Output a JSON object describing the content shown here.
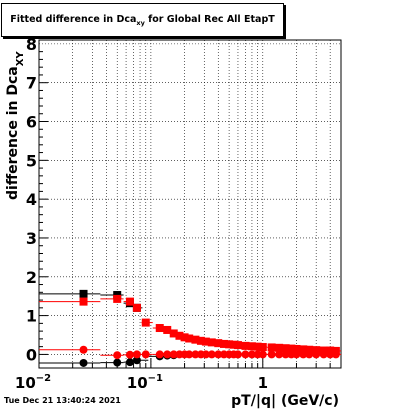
{
  "title": {
    "main": "Fitted difference in Dca",
    "sub": "xy",
    "suffix": " for Global Rec All EtapT"
  },
  "timestamp": "Tue Dec 21 13:40:24 2021",
  "chart_data": {
    "type": "scatter",
    "x_scale": "log",
    "xlim": [
      0.01,
      5
    ],
    "ylim": [
      -0.35,
      8.1
    ],
    "grid": true,
    "xlabel": "pT/|q| (GeV/c)",
    "ylabel": {
      "main": "difference in Dca",
      "sub": "XY"
    },
    "x_ticks": [
      {
        "v": 0.01,
        "base": "10",
        "exp": "−2"
      },
      {
        "v": 0.1,
        "base": "10",
        "exp": "−1"
      },
      {
        "v": 1,
        "base": "1",
        "exp": ""
      }
    ],
    "y_ticks": [
      0,
      1,
      2,
      3,
      4,
      5,
      6,
      7,
      8
    ],
    "series": [
      {
        "marker": "square",
        "color": "#000000",
        "x": [
          0.025,
          0.05,
          0.065,
          0.075
        ],
        "y": [
          1.56,
          1.53,
          1.32,
          1.2
        ]
      },
      {
        "marker": "square",
        "color": "#ff0000",
        "x": [
          0.025,
          0.05,
          0.065,
          0.075,
          0.09,
          0.12,
          0.14,
          0.16,
          0.18,
          0.2,
          0.22,
          0.25,
          0.28,
          0.31,
          0.35,
          0.4,
          0.45,
          0.5,
          0.55,
          0.6,
          0.7,
          0.8,
          0.9,
          1.0,
          1.2,
          1.4,
          1.6,
          1.8,
          2.0,
          2.3,
          2.6,
          3.0,
          3.5,
          4.0,
          4.5
        ],
        "y": [
          1.36,
          1.43,
          1.36,
          1.2,
          0.82,
          0.68,
          0.63,
          0.54,
          0.48,
          0.44,
          0.41,
          0.38,
          0.35,
          0.33,
          0.31,
          0.29,
          0.27,
          0.26,
          0.25,
          0.24,
          0.22,
          0.21,
          0.2,
          0.19,
          0.18,
          0.17,
          0.16,
          0.15,
          0.14,
          0.13,
          0.12,
          0.11,
          0.1,
          0.1,
          0.09
        ]
      },
      {
        "marker": "circle",
        "color": "#000000",
        "x": [
          0.025,
          0.05,
          0.065,
          0.075,
          0.12,
          0.14,
          0.16
        ],
        "y": [
          -0.22,
          -0.21,
          -0.2,
          -0.15,
          -0.05,
          -0.03,
          -0.02
        ]
      },
      {
        "marker": "circle",
        "color": "#ff0000",
        "x": [
          0.025,
          0.05,
          0.065,
          0.075,
          0.09,
          0.12,
          0.14,
          0.16,
          0.18,
          0.2,
          0.22,
          0.25,
          0.28,
          0.31,
          0.35,
          0.4,
          0.45,
          0.5,
          0.55,
          0.6,
          0.7,
          0.8,
          0.9,
          1.0,
          1.2,
          1.4,
          1.6,
          1.8,
          2.0,
          2.3,
          2.6,
          3.0,
          3.5,
          4.0,
          4.5
        ],
        "y": [
          0.12,
          -0.02,
          -0.01,
          0.0,
          0.0,
          0.0,
          0.0,
          0.0,
          0.0,
          0.0,
          0.0,
          0.0,
          0.0,
          0.0,
          0.0,
          0.0,
          0.0,
          0.0,
          0.0,
          0.0,
          0.0,
          0.0,
          0.0,
          0.0,
          0.0,
          0.0,
          0.0,
          0.0,
          0.0,
          0.0,
          0.0,
          0.0,
          0.0,
          0.0,
          0.0
        ]
      }
    ]
  }
}
